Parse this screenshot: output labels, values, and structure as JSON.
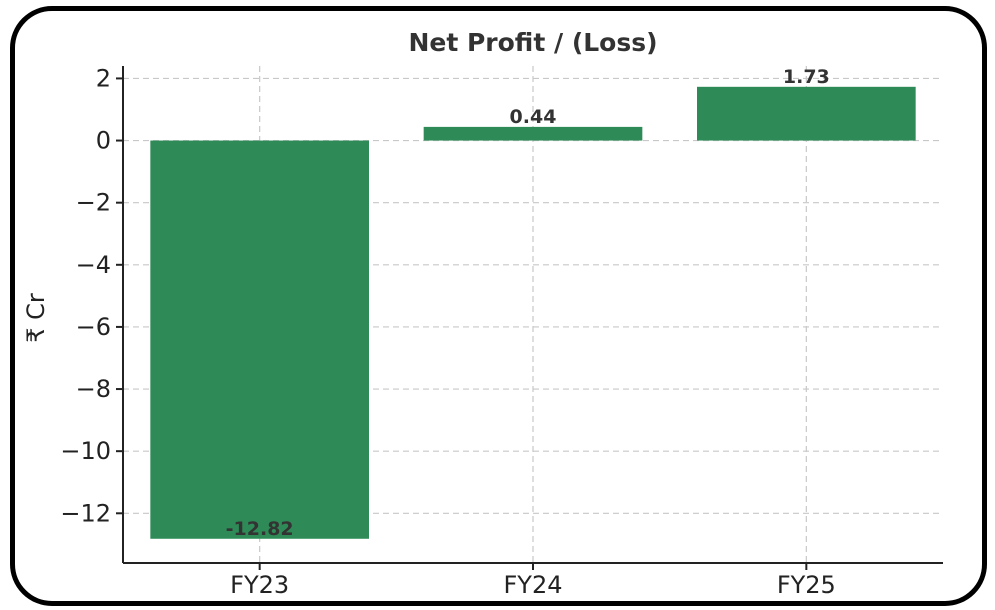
{
  "chart_data": {
    "type": "bar",
    "title": "Net Profit / (Loss)",
    "ylabel": "₹ Cr",
    "xlabel": "",
    "categories": [
      "FY23",
      "FY24",
      "FY25"
    ],
    "values": [
      -12.82,
      0.44,
      1.73
    ],
    "value_labels": [
      "-12.82",
      "0.44",
      "1.73"
    ],
    "ylim": [
      -13.6,
      2.4
    ],
    "yticks": [
      2,
      0,
      -2,
      -4,
      -6,
      -8,
      -10,
      -12
    ],
    "ytick_labels": [
      "2",
      "0",
      "−2",
      "−4",
      "−6",
      "−8",
      "−10",
      "−12"
    ],
    "grid": true,
    "bar_color": "#2e8b57"
  }
}
